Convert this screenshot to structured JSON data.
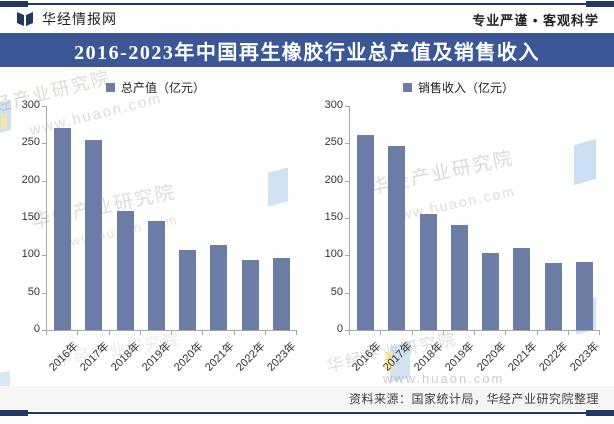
{
  "header": {
    "brand": "华经情报网",
    "slogan": "专业严谨 • 客观科学"
  },
  "banner": {
    "title": "2016-2023年中国再生橡胶行业总产值及销售收入"
  },
  "watermarks": {
    "name": "华经产业研究院",
    "url": "www.huaon.com"
  },
  "footer": {
    "source": "资料来源：国家统计局，华经产业研究院整理"
  },
  "colors": {
    "banner_bg": "#3C5795",
    "rule": "#1F3864",
    "logo": "#1F3864",
    "bar": "#6B7DA5",
    "axis": "#A6A6A6"
  },
  "chart_data": [
    {
      "type": "bar",
      "legend": "总产值（亿元）",
      "categories": [
        "2016年",
        "2017年",
        "2018年",
        "2019年",
        "2020年",
        "2021年",
        "2022年",
        "2023年"
      ],
      "values": [
        270,
        254,
        160,
        146,
        107,
        114,
        94,
        96
      ],
      "ylim": [
        0,
        300
      ],
      "ytick_interval": 50,
      "grid": false,
      "legend_position": "top-center",
      "bar_color": "#6B7DA5"
    },
    {
      "type": "bar",
      "legend": "销售收入（亿元）",
      "categories": [
        "2016年",
        "2017年",
        "2018年",
        "2019年",
        "2020年",
        "2021年",
        "2022年",
        "2023年"
      ],
      "values": [
        261,
        247,
        155,
        141,
        103,
        110,
        90,
        91
      ],
      "ylim": [
        0,
        300
      ],
      "ytick_interval": 50,
      "grid": false,
      "legend_position": "top-center",
      "bar_color": "#6B7DA5"
    }
  ]
}
